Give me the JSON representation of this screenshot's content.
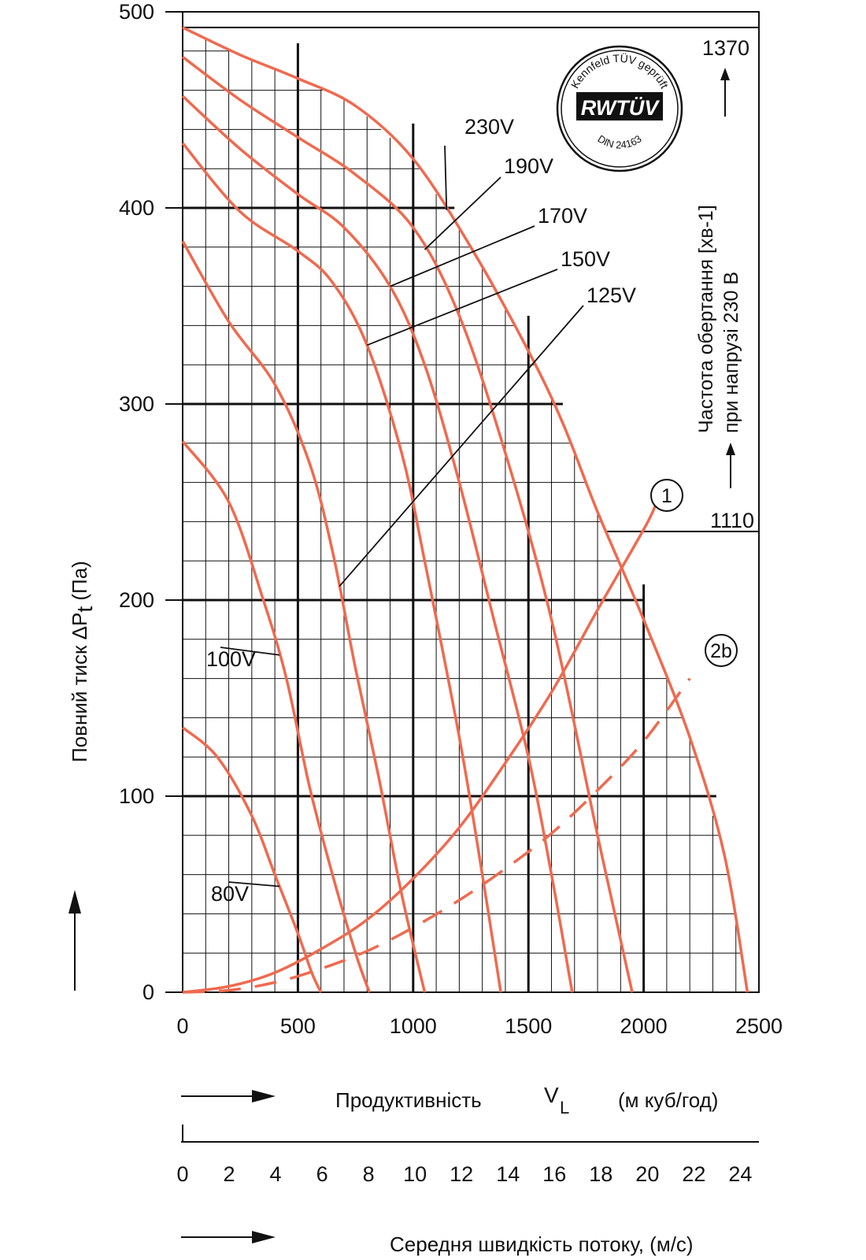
{
  "chart_data": {
    "type": "line",
    "xlabel_parts": {
      "label": "Продуктивність",
      "symbol": "V",
      "subscript": "L",
      "unit": "(м куб/год)"
    },
    "x_ticks": [
      "0",
      "500",
      "1000",
      "1500",
      "2000",
      "2500"
    ],
    "xlim": [
      0,
      2500
    ],
    "ylabel_parts": {
      "label": "Повний тиск ",
      "symbol": "ΔP",
      "subscript": "t",
      "unit": " (Па)"
    },
    "y_ticks": [
      "0",
      "100",
      "200",
      "300",
      "400",
      "500"
    ],
    "ylim": [
      0,
      500
    ],
    "secondary_axis": {
      "label": "Середня швидкість потоку, (м/с)",
      "ticks": [
        "0",
        "2",
        "4",
        "6",
        "8",
        "10",
        "12",
        "14",
        "16",
        "18",
        "20",
        "22",
        "24"
      ],
      "range": [
        0,
        24.8
      ]
    },
    "right_label": {
      "line1": "Частота обертання [хв-1]",
      "line2": "при напрузі 230 В"
    },
    "speed_markers": [
      {
        "label": "1370",
        "y": 492
      },
      {
        "label": "1110",
        "y": 235
      }
    ],
    "badge": {
      "top_text": "Kennfeld TÜV geprüft",
      "main_text": "RWTÜV",
      "bottom_text": "DIN 24163"
    },
    "grid": true,
    "series": [
      {
        "name": "230V",
        "x": [
          0,
          250,
          500,
          750,
          1000,
          1250,
          1500,
          1650,
          1800,
          2000,
          2200,
          2350,
          2450
        ],
        "y": [
          492,
          478,
          466,
          452,
          425,
          380,
          327,
          290,
          245,
          190,
          130,
          70,
          0
        ]
      },
      {
        "name": "190V",
        "x": [
          0,
          250,
          500,
          750,
          1000,
          1200,
          1400,
          1600,
          1800,
          1950
        ],
        "y": [
          477,
          455,
          436,
          417,
          390,
          345,
          275,
          190,
          80,
          0
        ]
      },
      {
        "name": "170V",
        "x": [
          0,
          250,
          500,
          700,
          900,
          1050,
          1200,
          1350,
          1500,
          1600,
          1690
        ],
        "y": [
          457,
          430,
          407,
          390,
          360,
          320,
          260,
          190,
          120,
          60,
          0
        ]
      },
      {
        "name": "150V",
        "x": [
          0,
          250,
          500,
          650,
          800,
          950,
          1050,
          1200,
          1300,
          1380
        ],
        "y": [
          433,
          398,
          378,
          362,
          330,
          275,
          220,
          130,
          60,
          0
        ]
      },
      {
        "name": "125V",
        "x": [
          0,
          200,
          400,
          550,
          650,
          750,
          850,
          950,
          1050
        ],
        "y": [
          383,
          342,
          310,
          270,
          225,
          165,
          110,
          50,
          0
        ]
      },
      {
        "name": "100V",
        "x": [
          0,
          200,
          350,
          450,
          550,
          650,
          750,
          810
        ],
        "y": [
          281,
          250,
          200,
          160,
          105,
          60,
          20,
          0
        ]
      },
      {
        "name": "80V",
        "x": [
          0,
          150,
          300,
          400,
          500,
          560,
          600
        ],
        "y": [
          135,
          120,
          90,
          60,
          30,
          10,
          0
        ]
      },
      {
        "name": "1",
        "x": [
          0,
          200,
          400,
          600,
          800,
          1000,
          1200,
          1400,
          1600,
          1800,
          2000,
          2050
        ],
        "y": [
          0,
          3,
          10,
          22,
          37,
          58,
          84,
          117,
          153,
          195,
          236,
          248
        ]
      },
      {
        "name": "2b",
        "x": [
          0,
          200,
          400,
          600,
          800,
          1000,
          1200,
          1400,
          1600,
          1800,
          2000,
          2200
        ],
        "y": [
          0,
          1,
          5,
          12,
          21,
          33,
          47,
          63,
          81,
          103,
          128,
          160
        ]
      }
    ],
    "curve_labels": [
      "230V",
      "190V",
      "170V",
      "150V",
      "125V",
      "100V",
      "80V"
    ],
    "system_labels": [
      "1",
      "2b"
    ]
  }
}
